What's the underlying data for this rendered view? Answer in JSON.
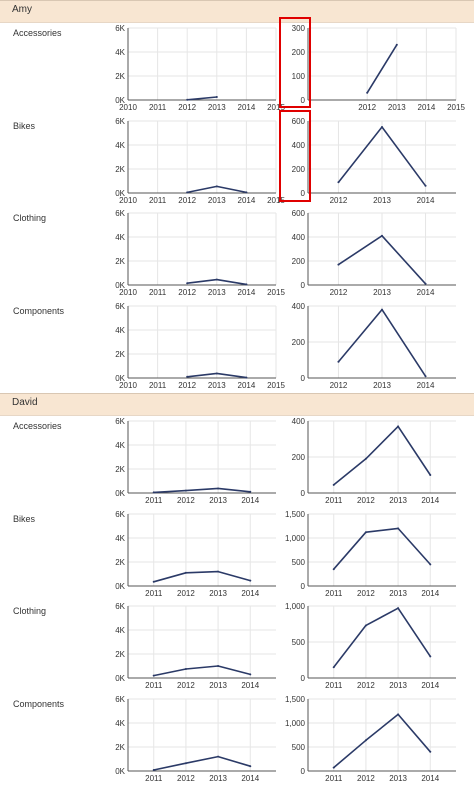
{
  "groups": [
    {
      "name": "Amy"
    },
    {
      "name": "David"
    }
  ],
  "colors": {
    "line": "#2b3a67",
    "grid": "#e6e6e6",
    "axis": "#555555",
    "header_bg": "#f8e6d2",
    "highlight": "#e00000"
  },
  "chart_data": [
    {
      "type": "line",
      "group": "Amy",
      "category": "Accessories",
      "panel": "shared",
      "x": [
        2012,
        2013
      ],
      "values": [
        20,
        250
      ],
      "xlim": [
        2010,
        2015
      ],
      "ylim": [
        0,
        6000
      ],
      "yticks": [
        "0K",
        "2K",
        "4K",
        "6K"
      ],
      "xticks": [
        2010,
        2011,
        2012,
        2013,
        2014,
        2015
      ]
    },
    {
      "type": "line",
      "group": "Amy",
      "category": "Accessories",
      "panel": "independent",
      "x": [
        2012,
        2013
      ],
      "values": [
        30,
        230
      ],
      "xlim": [
        2010,
        2015
      ],
      "ylim": [
        0,
        300
      ],
      "yticks": [
        "0",
        "100",
        "200",
        "300"
      ],
      "xticks": [
        2012,
        2013,
        2014,
        2015
      ]
    },
    {
      "type": "line",
      "group": "Amy",
      "category": "Bikes",
      "panel": "shared",
      "x": [
        2012,
        2013,
        2014
      ],
      "values": [
        50,
        550,
        50
      ],
      "xlim": [
        2010,
        2015
      ],
      "ylim": [
        0,
        6000
      ],
      "yticks": [
        "0K",
        "2K",
        "4K",
        "6K"
      ],
      "xticks": [
        2010,
        2011,
        2012,
        2013,
        2014,
        2015
      ]
    },
    {
      "type": "line",
      "group": "Amy",
      "category": "Bikes",
      "panel": "independent",
      "x": [
        2012,
        2013,
        2014
      ],
      "values": [
        90,
        550,
        60
      ],
      "xlim": [
        2011.3,
        2014.7
      ],
      "ylim": [
        0,
        600
      ],
      "yticks": [
        "0",
        "200",
        "400",
        "600"
      ],
      "xticks": [
        2012,
        2013,
        2014
      ]
    },
    {
      "type": "line",
      "group": "Amy",
      "category": "Clothing",
      "panel": "shared",
      "x": [
        2012,
        2013,
        2014
      ],
      "values": [
        150,
        450,
        50
      ],
      "xlim": [
        2010,
        2015
      ],
      "ylim": [
        0,
        6000
      ],
      "yticks": [
        "0K",
        "2K",
        "4K",
        "6K"
      ],
      "xticks": [
        2010,
        2011,
        2012,
        2013,
        2014,
        2015
      ]
    },
    {
      "type": "line",
      "group": "Amy",
      "category": "Clothing",
      "panel": "independent",
      "x": [
        2012,
        2013,
        2014
      ],
      "values": [
        170,
        410,
        10
      ],
      "xlim": [
        2011.3,
        2014.7
      ],
      "ylim": [
        0,
        600
      ],
      "yticks": [
        "0",
        "200",
        "400",
        "600"
      ],
      "xticks": [
        2012,
        2013,
        2014
      ]
    },
    {
      "type": "line",
      "group": "Amy",
      "category": "Components",
      "panel": "shared",
      "x": [
        2012,
        2013,
        2014
      ],
      "values": [
        100,
        380,
        30
      ],
      "xlim": [
        2010,
        2015
      ],
      "ylim": [
        0,
        6000
      ],
      "yticks": [
        "0K",
        "2K",
        "4K",
        "6K"
      ],
      "xticks": [
        2010,
        2011,
        2012,
        2013,
        2014,
        2015
      ]
    },
    {
      "type": "line",
      "group": "Amy",
      "category": "Components",
      "panel": "independent",
      "x": [
        2012,
        2013,
        2014
      ],
      "values": [
        90,
        380,
        10
      ],
      "xlim": [
        2011.3,
        2014.7
      ],
      "ylim": [
        0,
        400
      ],
      "yticks": [
        "0",
        "200",
        "400"
      ],
      "xticks": [
        2012,
        2013,
        2014
      ]
    },
    {
      "type": "line",
      "group": "David",
      "category": "Accessories",
      "panel": "shared",
      "x": [
        2011,
        2012,
        2013,
        2014
      ],
      "values": [
        50,
        200,
        380,
        100
      ],
      "xlim": [
        2010.2,
        2014.8
      ],
      "ylim": [
        0,
        6000
      ],
      "yticks": [
        "0K",
        "2K",
        "4K",
        "6K"
      ],
      "xticks": [
        2011,
        2012,
        2013,
        2014
      ]
    },
    {
      "type": "line",
      "group": "David",
      "category": "Accessories",
      "panel": "independent",
      "x": [
        2011,
        2012,
        2013,
        2014
      ],
      "values": [
        45,
        190,
        370,
        100
      ],
      "xlim": [
        2010.2,
        2014.8
      ],
      "ylim": [
        0,
        400
      ],
      "yticks": [
        "0",
        "200",
        "400"
      ],
      "xticks": [
        2011,
        2012,
        2013,
        2014
      ]
    },
    {
      "type": "line",
      "group": "David",
      "category": "Bikes",
      "panel": "shared",
      "x": [
        2011,
        2012,
        2013,
        2014
      ],
      "values": [
        350,
        1100,
        1200,
        450
      ],
      "xlim": [
        2010.2,
        2014.8
      ],
      "ylim": [
        0,
        6000
      ],
      "yticks": [
        "0K",
        "2K",
        "4K",
        "6K"
      ],
      "xticks": [
        2011,
        2012,
        2013,
        2014
      ]
    },
    {
      "type": "line",
      "group": "David",
      "category": "Bikes",
      "panel": "independent",
      "x": [
        2011,
        2012,
        2013,
        2014
      ],
      "values": [
        350,
        1120,
        1200,
        450
      ],
      "xlim": [
        2010.2,
        2014.8
      ],
      "ylim": [
        0,
        1500
      ],
      "yticks": [
        "0",
        "500",
        "1,000",
        "1,500"
      ],
      "xticks": [
        2011,
        2012,
        2013,
        2014
      ]
    },
    {
      "type": "line",
      "group": "David",
      "category": "Clothing",
      "panel": "shared",
      "x": [
        2011,
        2012,
        2013,
        2014
      ],
      "values": [
        200,
        750,
        1000,
        300
      ],
      "xlim": [
        2010.2,
        2014.8
      ],
      "ylim": [
        0,
        6000
      ],
      "yticks": [
        "0K",
        "2K",
        "4K",
        "6K"
      ],
      "xticks": [
        2011,
        2012,
        2013,
        2014
      ]
    },
    {
      "type": "line",
      "group": "David",
      "category": "Clothing",
      "panel": "independent",
      "x": [
        2011,
        2012,
        2013,
        2014
      ],
      "values": [
        150,
        730,
        970,
        300
      ],
      "xlim": [
        2010.2,
        2014.8
      ],
      "ylim": [
        0,
        1000
      ],
      "yticks": [
        "0",
        "500",
        "1,000"
      ],
      "xticks": [
        2011,
        2012,
        2013,
        2014
      ]
    },
    {
      "type": "line",
      "group": "David",
      "category": "Components",
      "panel": "shared",
      "x": [
        2011,
        2012,
        2013,
        2014
      ],
      "values": [
        80,
        650,
        1200,
        400
      ],
      "xlim": [
        2010.2,
        2014.8
      ],
      "ylim": [
        0,
        6000
      ],
      "yticks": [
        "0K",
        "2K",
        "4K",
        "6K"
      ],
      "xticks": [
        2011,
        2012,
        2013,
        2014
      ]
    },
    {
      "type": "line",
      "group": "David",
      "category": "Components",
      "panel": "independent",
      "x": [
        2011,
        2012,
        2013,
        2014
      ],
      "values": [
        70,
        640,
        1180,
        400
      ],
      "xlim": [
        2010.2,
        2014.8
      ],
      "ylim": [
        0,
        1500
      ],
      "yticks": [
        "0",
        "500",
        "1,000",
        "1,500"
      ],
      "xticks": [
        2011,
        2012,
        2013,
        2014
      ]
    }
  ]
}
